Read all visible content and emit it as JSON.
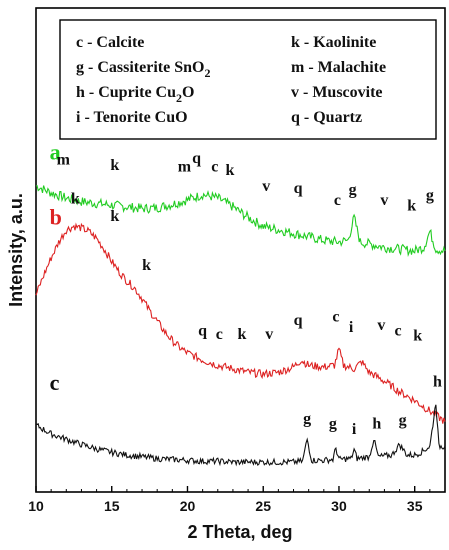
{
  "chart_data": {
    "type": "line",
    "xlabel": "2 Theta, deg",
    "ylabel": "Intensity, a.u.",
    "xlim": [
      10,
      37
    ],
    "x_ticks": [
      10,
      15,
      20,
      25,
      30,
      35
    ],
    "legend": {
      "left": [
        {
          "text": "c - Calcite"
        },
        {
          "text": "g - Cassiterite SnO",
          "sub": "2"
        },
        {
          "text": "h - Cuprite Cu",
          "sub": "2",
          "tail": "O"
        },
        {
          "text": "i  - Tenorite CuO"
        }
      ],
      "right": [
        {
          "text": "k - Kaolinite"
        },
        {
          "text": "m - Malachite"
        },
        {
          "text": "v - Muscovite"
        },
        {
          "text": "q - Quartz"
        }
      ]
    },
    "series": [
      {
        "name": "a",
        "color": "#22cc22",
        "x": [
          10,
          11,
          12,
          13,
          14,
          15,
          16,
          17,
          18,
          19,
          20,
          21,
          22,
          23,
          24,
          25,
          26,
          27,
          28,
          29,
          30,
          30.6,
          31.0,
          31.4,
          32,
          33,
          34,
          35,
          35.6,
          36.0,
          36.4,
          37
        ],
        "y": [
          17.4,
          17.0,
          16.7,
          16.5,
          16.4,
          16.3,
          16.2,
          16.1,
          16.15,
          16.35,
          16.6,
          16.9,
          16.7,
          16.2,
          15.6,
          15.1,
          14.9,
          14.7,
          14.5,
          14.3,
          14.2,
          14.3,
          15.6,
          14.2,
          14.1,
          13.9,
          13.8,
          13.7,
          13.9,
          14.8,
          13.8,
          13.7
        ]
      },
      {
        "name": "b",
        "color": "#dd2222",
        "x": [
          10,
          10.5,
          11,
          11.5,
          12,
          12.5,
          13,
          13.5,
          14,
          14.5,
          15,
          15.5,
          16,
          16.5,
          17,
          17.5,
          18,
          18.5,
          19,
          19.5,
          20,
          21,
          22,
          23,
          24,
          25,
          26,
          27,
          27.5,
          28,
          29,
          29.7,
          30.0,
          30.3,
          31,
          31.5,
          32,
          33,
          34,
          35,
          36,
          37
        ],
        "y": [
          11.2,
          12.3,
          13.3,
          14.2,
          14.9,
          15.1,
          15.0,
          14.8,
          14.4,
          13.8,
          13.1,
          12.5,
          12.0,
          11.6,
          11.0,
          10.3,
          9.7,
          9.1,
          8.6,
          8.2,
          7.9,
          7.5,
          7.2,
          7.0,
          6.8,
          6.7,
          6.8,
          7.1,
          7.5,
          7.2,
          7.1,
          7.2,
          8.1,
          7.2,
          7.0,
          7.4,
          6.8,
          6.3,
          5.7,
          5.2,
          4.6,
          4.0
        ]
      },
      {
        "name": "c",
        "color": "#111111",
        "x": [
          10,
          11,
          12,
          13,
          14,
          15,
          16,
          17,
          18,
          19,
          20,
          21,
          22,
          23,
          24,
          25,
          26,
          27,
          27.6,
          27.9,
          28.2,
          29,
          29.6,
          29.8,
          30.0,
          30.8,
          31.0,
          31.2,
          32.0,
          32.3,
          32.6,
          33.5,
          34.0,
          34.5,
          35,
          35.5,
          36.0,
          36.4,
          36.6,
          37
        ],
        "y": [
          3.8,
          3.3,
          3.0,
          2.7,
          2.45,
          2.25,
          2.1,
          2.0,
          1.9,
          1.85,
          1.8,
          1.75,
          1.75,
          1.7,
          1.7,
          1.7,
          1.7,
          1.7,
          1.75,
          3.0,
          1.8,
          1.8,
          1.85,
          2.5,
          1.85,
          1.9,
          2.4,
          1.9,
          2.0,
          3.0,
          2.0,
          2.1,
          2.7,
          2.1,
          2.1,
          2.3,
          2.6,
          5.1,
          2.6,
          2.6
        ]
      }
    ],
    "annotations": [
      {
        "text": "m",
        "x": 11.8,
        "y": 18.6
      },
      {
        "text": "k",
        "x": 15.2,
        "y": 18.3
      },
      {
        "text": "m",
        "x": 19.8,
        "y": 18.2
      },
      {
        "text": "q",
        "x": 20.6,
        "y": 18.7
      },
      {
        "text": "c",
        "x": 21.8,
        "y": 18.2
      },
      {
        "text": "k",
        "x": 22.8,
        "y": 18.0
      },
      {
        "text": "v",
        "x": 25.2,
        "y": 17.1
      },
      {
        "text": "q",
        "x": 27.3,
        "y": 17.0
      },
      {
        "text": "c",
        "x": 29.9,
        "y": 16.3
      },
      {
        "text": "g",
        "x": 30.9,
        "y": 16.9
      },
      {
        "text": "v",
        "x": 33.0,
        "y": 16.3
      },
      {
        "text": "k",
        "x": 34.8,
        "y": 16.0
      },
      {
        "text": "g",
        "x": 36.0,
        "y": 16.6
      },
      {
        "text": "k",
        "x": 12.6,
        "y": 16.4
      },
      {
        "text": "k",
        "x": 15.2,
        "y": 15.4
      },
      {
        "text": "k",
        "x": 17.3,
        "y": 12.6
      },
      {
        "text": "q",
        "x": 21.0,
        "y": 8.9
      },
      {
        "text": "c",
        "x": 22.1,
        "y": 8.7
      },
      {
        "text": "k",
        "x": 23.6,
        "y": 8.7
      },
      {
        "text": "v",
        "x": 25.4,
        "y": 8.7
      },
      {
        "text": "q",
        "x": 27.3,
        "y": 9.5
      },
      {
        "text": "c",
        "x": 29.8,
        "y": 9.7
      },
      {
        "text": "i",
        "x": 30.8,
        "y": 9.1
      },
      {
        "text": "v",
        "x": 32.8,
        "y": 9.2
      },
      {
        "text": "c",
        "x": 33.9,
        "y": 8.9
      },
      {
        "text": "k",
        "x": 35.2,
        "y": 8.6
      },
      {
        "text": "g",
        "x": 27.9,
        "y": 3.9
      },
      {
        "text": "g",
        "x": 29.6,
        "y": 3.6
      },
      {
        "text": "i",
        "x": 31.0,
        "y": 3.3
      },
      {
        "text": "h",
        "x": 32.5,
        "y": 3.6
      },
      {
        "text": "g",
        "x": 34.2,
        "y": 3.8
      },
      {
        "text": "h",
        "x": 36.5,
        "y": 6.0
      }
    ],
    "series_labels": [
      {
        "text": "a",
        "series": "a",
        "x": 10.9,
        "y": 18.9
      },
      {
        "text": "b",
        "series": "b",
        "x": 10.9,
        "y": 15.2
      },
      {
        "text": "c",
        "series": "c",
        "x": 10.9,
        "y": 5.8
      }
    ],
    "ylim": [
      0,
      27.5
    ],
    "grid": false
  }
}
